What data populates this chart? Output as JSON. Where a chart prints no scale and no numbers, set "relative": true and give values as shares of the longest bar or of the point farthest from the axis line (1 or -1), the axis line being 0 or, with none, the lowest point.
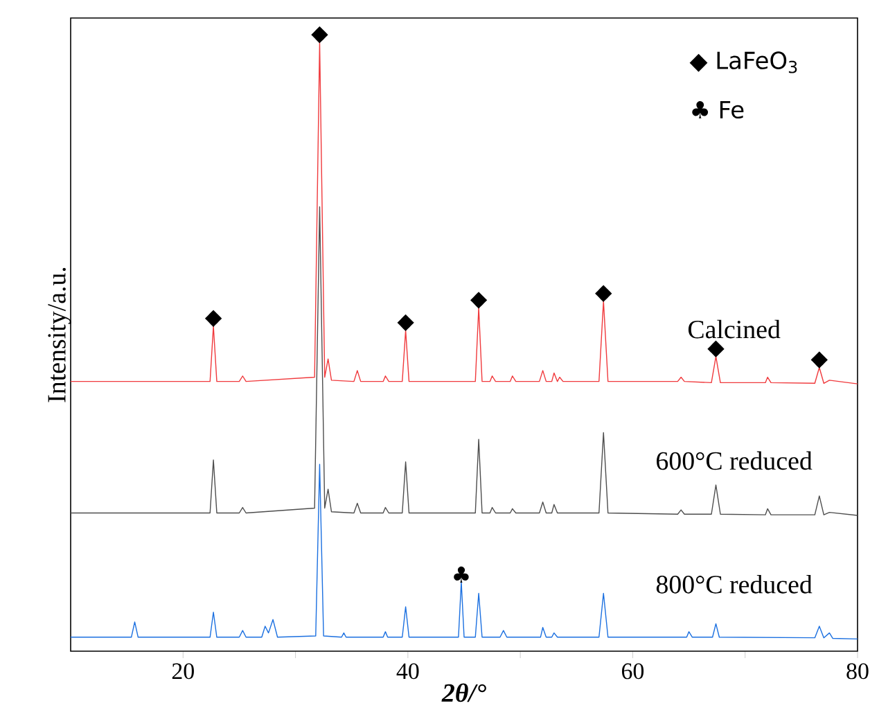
{
  "chart_data": {
    "type": "line",
    "relative": true,
    "xlabel": "2θ/°",
    "ylabel": "Intensity/a.u.",
    "xlim": [
      10,
      80
    ],
    "xticks": [
      20,
      {
        "value": 30,
        "label": null
      },
      40,
      {
        "value": 50,
        "label": null
      },
      60,
      {
        "value": 70,
        "label": null
      },
      80
    ],
    "tick_labels": "x",
    "series": [
      {
        "name": "Calcined",
        "color": "#f0393c",
        "x": [
          10,
          22.4,
          22.7,
          23.0,
          25.0,
          25.3,
          25.6,
          31.7,
          32.15,
          32.6,
          32.9,
          33.2,
          35.2,
          35.5,
          35.8,
          37.8,
          38.0,
          38.3,
          39.5,
          39.8,
          40.1,
          46.0,
          46.3,
          46.6,
          47.3,
          47.5,
          47.8,
          49.1,
          49.3,
          49.6,
          51.7,
          52.0,
          52.3,
          52.8,
          53.0,
          53.3,
          53.5,
          53.8,
          57.0,
          57.4,
          57.8,
          64,
          64.3,
          64.6,
          67.0,
          67.4,
          67.8,
          71.8,
          72.0,
          72.3,
          76.2,
          76.6,
          77.0,
          77.5,
          80
        ],
        "values": [
          0.443,
          0.443,
          0.534,
          0.443,
          0.443,
          0.452,
          0.443,
          0.45,
          1.0,
          0.45,
          0.48,
          0.445,
          0.443,
          0.461,
          0.443,
          0.443,
          0.452,
          0.443,
          0.443,
          0.527,
          0.443,
          0.443,
          0.564,
          0.443,
          0.443,
          0.452,
          0.443,
          0.443,
          0.452,
          0.443,
          0.443,
          0.461,
          0.443,
          0.443,
          0.457,
          0.443,
          0.45,
          0.443,
          0.443,
          0.575,
          0.443,
          0.443,
          0.45,
          0.443,
          0.441,
          0.484,
          0.441,
          0.441,
          0.45,
          0.441,
          0.44,
          0.466,
          0.44,
          0.445,
          0.439
        ]
      },
      {
        "name": "600°C reduced",
        "color": "#4d4d4d",
        "x": [
          10,
          22.4,
          22.7,
          23.0,
          25.0,
          25.3,
          25.6,
          31.7,
          32.15,
          32.6,
          32.9,
          33.2,
          35.2,
          35.5,
          35.8,
          37.8,
          38.0,
          38.3,
          39.5,
          39.8,
          40.1,
          46.0,
          46.3,
          46.6,
          47.3,
          47.5,
          47.8,
          49.1,
          49.3,
          49.6,
          51.7,
          52.0,
          52.3,
          52.8,
          53.0,
          53.3,
          57.0,
          57.4,
          57.8,
          64,
          64.3,
          64.6,
          67.0,
          67.4,
          67.8,
          71.8,
          72.0,
          72.3,
          76.2,
          76.6,
          77.0,
          77.5,
          80
        ],
        "values": [
          0.227,
          0.227,
          0.314,
          0.227,
          0.227,
          0.236,
          0.227,
          0.235,
          0.73,
          0.235,
          0.266,
          0.229,
          0.227,
          0.243,
          0.227,
          0.227,
          0.236,
          0.227,
          0.227,
          0.311,
          0.227,
          0.227,
          0.348,
          0.227,
          0.227,
          0.236,
          0.227,
          0.227,
          0.234,
          0.227,
          0.227,
          0.245,
          0.227,
          0.227,
          0.241,
          0.227,
          0.227,
          0.359,
          0.227,
          0.225,
          0.232,
          0.225,
          0.225,
          0.273,
          0.225,
          0.224,
          0.234,
          0.224,
          0.224,
          0.255,
          0.224,
          0.228,
          0.223
        ]
      },
      {
        "name": "800°C reduced",
        "color": "#1a6fe0",
        "x": [
          10,
          15.4,
          15.7,
          16.0,
          22.4,
          22.7,
          23.0,
          25.0,
          25.3,
          25.6,
          27.0,
          27.3,
          27.6,
          28.0,
          28.4,
          31.8,
          32.15,
          32.5,
          34.1,
          34.3,
          34.5,
          37.8,
          38.0,
          38.2,
          39.5,
          39.8,
          40.1,
          44.5,
          44.75,
          45.0,
          46.0,
          46.3,
          46.6,
          48.2,
          48.5,
          48.8,
          51.8,
          52.0,
          52.3,
          52.8,
          53.0,
          53.3,
          57.0,
          57.4,
          57.8,
          64.8,
          65.0,
          65.3,
          67.1,
          67.4,
          67.7,
          76.2,
          76.6,
          77.0,
          77.5,
          77.8,
          80
        ],
        "values": [
          0.023,
          0.023,
          0.048,
          0.023,
          0.023,
          0.064,
          0.023,
          0.023,
          0.034,
          0.023,
          0.023,
          0.041,
          0.03,
          0.052,
          0.023,
          0.025,
          0.307,
          0.025,
          0.023,
          0.03,
          0.023,
          0.023,
          0.032,
          0.023,
          0.023,
          0.073,
          0.023,
          0.023,
          0.114,
          0.023,
          0.023,
          0.095,
          0.023,
          0.023,
          0.034,
          0.023,
          0.023,
          0.039,
          0.023,
          0.023,
          0.03,
          0.023,
          0.023,
          0.095,
          0.023,
          0.023,
          0.032,
          0.023,
          0.023,
          0.045,
          0.023,
          0.022,
          0.041,
          0.022,
          0.03,
          0.021,
          0.02
        ]
      }
    ],
    "annotations": [
      {
        "text": "◆",
        "x": 22.7,
        "y": 0.534
      },
      {
        "text": "◆",
        "x": 32.15,
        "y": 1.0
      },
      {
        "text": "◆",
        "x": 39.8,
        "y": 0.527
      },
      {
        "text": "◆",
        "x": 46.3,
        "y": 0.564
      },
      {
        "text": "◆",
        "x": 57.4,
        "y": 0.575
      },
      {
        "text": "◆",
        "x": 67.4,
        "y": 0.484
      },
      {
        "text": "◆",
        "x": 76.6,
        "y": 0.466
      },
      {
        "text": "♣",
        "x": 44.75,
        "y": 0.114
      },
      "◆ LaFeO$_{3}$",
      "♣ Fe"
    ]
  }
}
